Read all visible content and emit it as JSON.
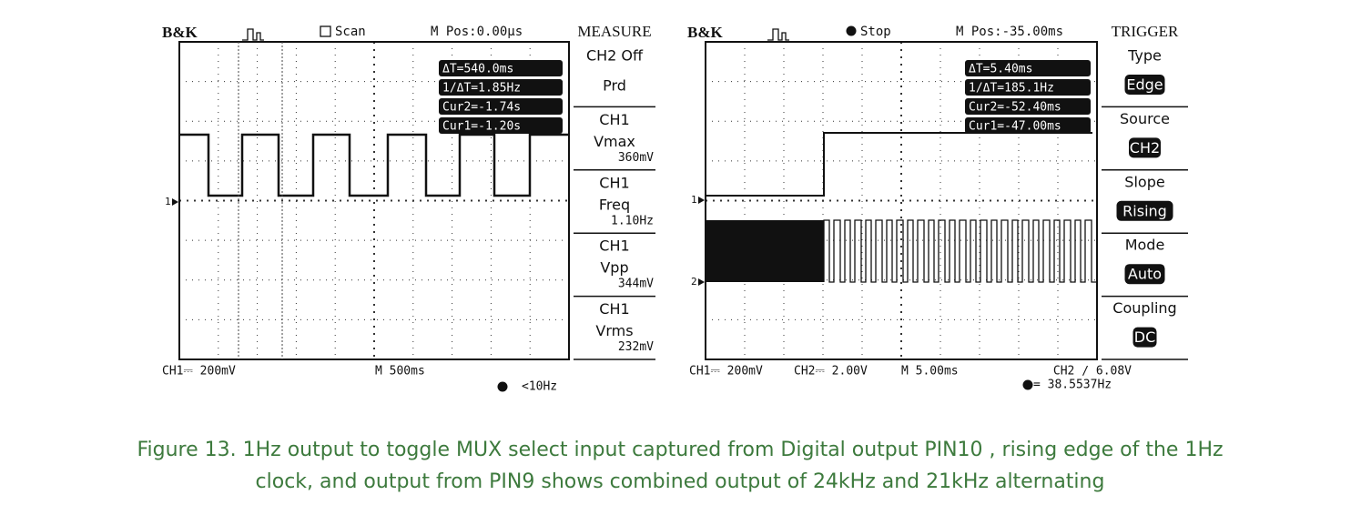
{
  "scopes": [
    {
      "brand": "B&K",
      "mode": "Scan",
      "mpos": "M Pos:0.00μs",
      "menu_title": "MEASURE",
      "cursors": [
        "ΔT=540.0ms",
        "1/ΔT=1.85Hz",
        "Cur2=-1.74s",
        "Cur1=-1.20s"
      ],
      "menu": [
        [
          "CH2 Off",
          "Prd"
        ],
        [
          "CH1",
          "Vmax",
          "360mV"
        ],
        [
          "CH1",
          "Freq",
          "1.10Hz"
        ],
        [
          "CH1",
          "Vpp",
          "344mV"
        ],
        [
          "CH1",
          "Vrms",
          "232mV"
        ]
      ],
      "markers": [
        "1"
      ],
      "footer": [
        "CH1⎓ 200mV",
        "M 500ms",
        "<10Hz"
      ]
    },
    {
      "brand": "B&K",
      "mode": "Stop",
      "mpos": "M Pos:-35.00ms",
      "menu_title": "TRIGGER",
      "cursors": [
        "ΔT=5.40ms",
        "1/ΔT=185.1Hz",
        "Cur2=-52.40ms",
        "Cur1=-47.00ms"
      ],
      "menu": [
        [
          "Type",
          "Edge"
        ],
        [
          "Source",
          "CH2"
        ],
        [
          "Slope",
          "Rising"
        ],
        [
          "Mode",
          "Auto"
        ],
        [
          "Coupling",
          "DC"
        ]
      ],
      "markers": [
        "1",
        "2"
      ],
      "footer": [
        "CH1⎓ 200mV",
        "CH2⎓ 2.00V",
        "M 5.00ms",
        "CH2 ∕ 6.08V",
        "= 38.5537Hz"
      ]
    }
  ],
  "caption": [
    "Figure 13. 1Hz output to toggle MUX select input captured from Digital output PIN10 , rising edge of the 1Hz",
    "clock, and output from PIN9 shows combined output of 24kHz and 21kHz alternating"
  ]
}
